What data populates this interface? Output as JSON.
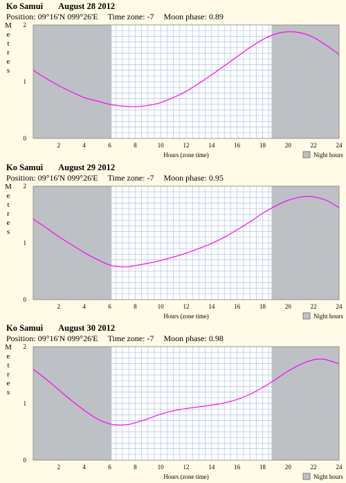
{
  "legend_label": "Night hours",
  "colors": {
    "night": "#c0c0c0",
    "grid": "#aac4e0",
    "curve": "#ff00ff",
    "background": "#fffbe6"
  },
  "chart_data": [
    {
      "type": "line",
      "location": "Ko Samui",
      "date": "August 28 2012",
      "position": "Position: 09°16'N 099°26'E",
      "timezone": "Time zone: -7",
      "moon_phase": "Moon phase: 0.89",
      "ylabel": "Metres",
      "xlabel": "Hours (zone time)",
      "xlim": [
        0,
        24
      ],
      "ylim": [
        0,
        2
      ],
      "x_ticks": [
        "2",
        "4",
        "6",
        "8",
        "10",
        "12",
        "14",
        "16",
        "18",
        "20",
        "22",
        "24"
      ],
      "y_ticks": [
        "0",
        "1",
        "2"
      ],
      "night_hours": [
        [
          0,
          6.15
        ],
        [
          18.7,
          24
        ]
      ],
      "x": [
        0,
        1,
        2,
        3,
        4,
        5,
        6,
        7,
        7.7,
        8,
        9,
        10,
        11,
        12,
        13,
        14,
        15,
        16,
        17,
        18,
        19,
        20,
        21,
        22,
        23,
        24
      ],
      "y": [
        1.2,
        1.06,
        0.93,
        0.82,
        0.72,
        0.66,
        0.6,
        0.57,
        0.56,
        0.56,
        0.58,
        0.63,
        0.72,
        0.83,
        0.97,
        1.12,
        1.28,
        1.44,
        1.6,
        1.74,
        1.84,
        1.88,
        1.86,
        1.78,
        1.64,
        1.48
      ]
    },
    {
      "type": "line",
      "location": "Ko Samui",
      "date": "August 29 2012",
      "position": "Position: 09°16'N 099°26'E",
      "timezone": "Time zone: -7",
      "moon_phase": "Moon phase: 0.95",
      "ylabel": "Metres",
      "xlabel": "Hours (zone time)",
      "xlim": [
        0,
        24
      ],
      "ylim": [
        0,
        2
      ],
      "x_ticks": [
        "2",
        "4",
        "6",
        "8",
        "10",
        "12",
        "14",
        "16",
        "18",
        "20",
        "22",
        "24"
      ],
      "y_ticks": [
        "0",
        "1",
        "2"
      ],
      "night_hours": [
        [
          0,
          6.15
        ],
        [
          18.7,
          24
        ]
      ],
      "x": [
        0,
        1,
        2,
        3,
        4,
        5,
        6,
        6.8,
        7.5,
        8,
        9,
        10,
        11,
        12,
        13,
        14,
        15,
        16,
        17,
        18,
        19,
        20,
        21,
        21.5,
        22,
        23,
        24
      ],
      "y": [
        1.42,
        1.27,
        1.11,
        0.97,
        0.83,
        0.71,
        0.61,
        0.58,
        0.58,
        0.6,
        0.64,
        0.69,
        0.75,
        0.82,
        0.9,
        0.99,
        1.1,
        1.23,
        1.37,
        1.52,
        1.65,
        1.75,
        1.81,
        1.82,
        1.81,
        1.75,
        1.62
      ]
    },
    {
      "type": "line",
      "location": "Ko Samui",
      "date": "August 30 2012",
      "position": "Position: 09°16'N 099°26'E",
      "timezone": "Time zone: -7",
      "moon_phase": "Moon phase: 0.98",
      "ylabel": "Metres",
      "xlabel": "Hours (zone time)",
      "xlim": [
        0,
        24
      ],
      "ylim": [
        0,
        2
      ],
      "x_ticks": [
        "2",
        "4",
        "6",
        "8",
        "10",
        "12",
        "14",
        "16",
        "18",
        "20",
        "22",
        "24"
      ],
      "y_ticks": [
        "0",
        "1",
        "2"
      ],
      "night_hours": [
        [
          0,
          6.15
        ],
        [
          18.7,
          24
        ]
      ],
      "x": [
        0,
        1,
        2,
        3,
        4,
        5,
        6,
        6.7,
        7.5,
        8,
        9,
        10,
        11,
        12,
        13,
        14,
        15,
        16,
        17,
        18,
        19,
        20,
        21,
        22,
        22.6,
        23,
        24
      ],
      "y": [
        1.6,
        1.43,
        1.24,
        1.05,
        0.88,
        0.73,
        0.64,
        0.62,
        0.63,
        0.66,
        0.73,
        0.81,
        0.87,
        0.91,
        0.94,
        0.97,
        1.01,
        1.07,
        1.16,
        1.28,
        1.42,
        1.57,
        1.69,
        1.77,
        1.78,
        1.77,
        1.7
      ]
    }
  ]
}
